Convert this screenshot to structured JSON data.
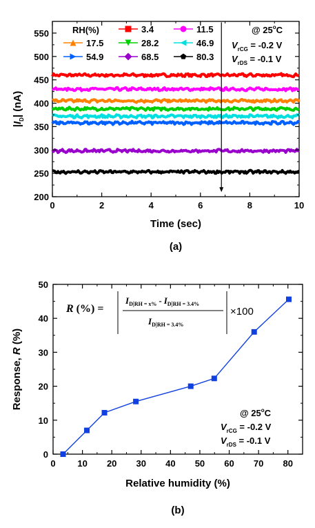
{
  "chart_data": [
    {
      "type": "line",
      "panel_label": "(a)",
      "xlabel": "Time (sec)",
      "ylabel": {
        "pre": "|",
        "italic": "I",
        "sub": "D",
        "post": "| (nA)"
      },
      "xlim": [
        0,
        10
      ],
      "ylim": [
        200,
        575
      ],
      "xticks": [
        "0",
        "2",
        "4",
        "6",
        "8",
        "10"
      ],
      "yticks": [
        "200",
        "250",
        "300",
        "350",
        "400",
        "450",
        "500",
        "550"
      ],
      "legend_title": "RH(%)",
      "series": [
        {
          "name": "3.4",
          "value": 460,
          "color": "#ff0000",
          "marker": "square"
        },
        {
          "name": "11.5",
          "value": 430,
          "color": "#ff00ff",
          "marker": "circle"
        },
        {
          "name": "17.5",
          "value": 405,
          "color": "#ff8000",
          "marker": "triangle-up"
        },
        {
          "name": "28.2",
          "value": 388,
          "color": "#00d000",
          "marker": "triangle-down"
        },
        {
          "name": "46.9",
          "value": 372,
          "color": "#00e0e0",
          "marker": "triangle-left"
        },
        {
          "name": "54.9",
          "value": 358,
          "color": "#0060ff",
          "marker": "triangle-right"
        },
        {
          "name": "68.5",
          "value": 298,
          "color": "#9900cc",
          "marker": "diamond"
        },
        {
          "name": "80.3",
          "value": 253,
          "color": "#000000",
          "marker": "pentagon"
        }
      ],
      "conditions": [
        {
          "prefix": "@ 25",
          "sup": "o",
          "suffix": "C"
        },
        {
          "italic": "V",
          "sub": "rCG",
          "suffix": " = -0.2 V"
        },
        {
          "italic": "V",
          "sub": "rDS",
          "suffix": " = -0.1 V"
        }
      ],
      "arrow": {
        "x": 6.85,
        "y_from": 573,
        "y_to": 210
      }
    },
    {
      "type": "line",
      "panel_label": "(b)",
      "xlabel": "Relative humidity (%)",
      "ylabel": {
        "pre": "Response, ",
        "italic": "R",
        "post": " (%)"
      },
      "xlim": [
        0,
        85
      ],
      "ylim": [
        0,
        50
      ],
      "xticks": [
        "0",
        "10",
        "20",
        "30",
        "40",
        "50",
        "60",
        "70",
        "80"
      ],
      "yticks": [
        "0",
        "10",
        "20",
        "30",
        "40",
        "50"
      ],
      "color": "#1040e0",
      "x": [
        3.4,
        11.5,
        17.5,
        28.2,
        46.9,
        54.9,
        68.5,
        80.3
      ],
      "y": [
        0,
        7,
        12.2,
        15.5,
        20,
        22.3,
        36,
        45.6
      ],
      "conditions": [
        {
          "prefix": "@ 25",
          "sup": "o",
          "suffix": "C"
        },
        {
          "italic": "V",
          "sub": "rCG",
          "suffix": " = -0.2 V"
        },
        {
          "italic": "V",
          "sub": "rDS",
          "suffix": " = -0.1 V"
        }
      ],
      "formula": {
        "lhs_italic": "R",
        "lhs_rest": " (%) =",
        "num_a_sub": "RH = x%",
        "num_b_sub": "RH = 3.4%",
        "den_sub": "RH = 3.4%",
        "letter": "I",
        "letter_sub": "D",
        "minus": "-",
        "times": "×100"
      }
    }
  ]
}
